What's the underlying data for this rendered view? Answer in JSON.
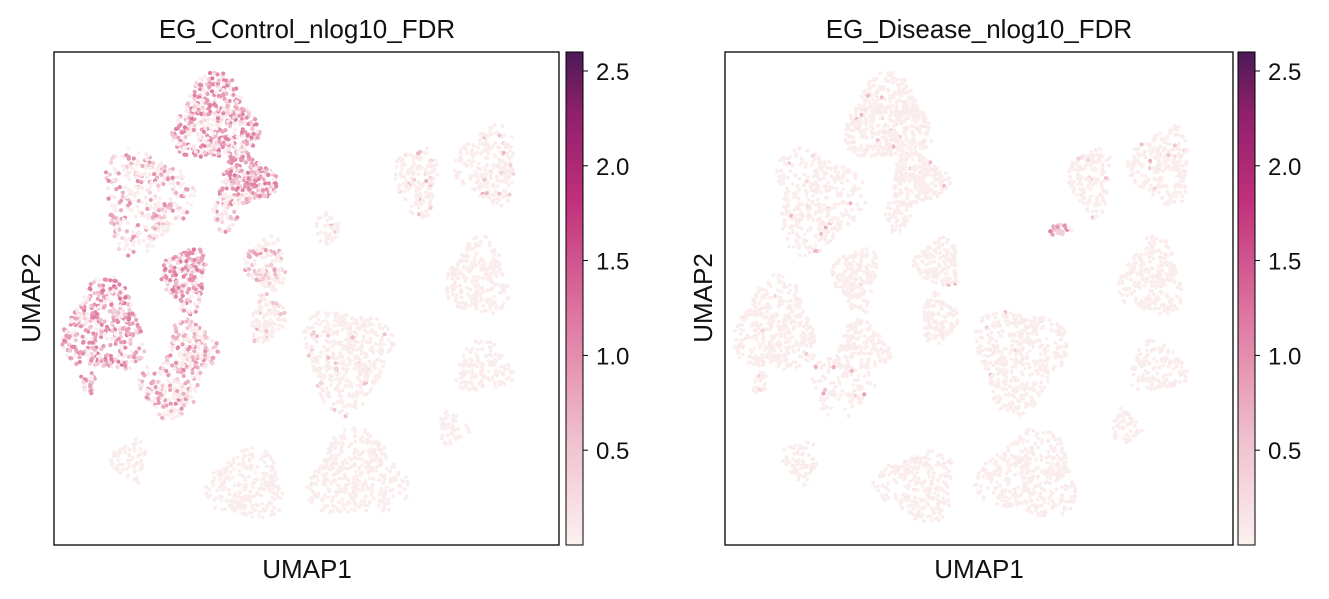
{
  "chart_data": [
    {
      "type": "scatter",
      "title": "EG_Control_nlog10_FDR",
      "xlabel": "UMAP1",
      "ylabel": "UMAP2",
      "grid": false,
      "colorbar": {
        "vmin": 0.0,
        "vmax": 2.6,
        "ticks": [
          "0.5",
          "1.0",
          "1.5",
          "2.0",
          "2.5"
        ],
        "tick_values": [
          0.5,
          1.0,
          1.5,
          2.0,
          2.5
        ]
      },
      "colormap": [
        "#fcf1f0",
        "#f0c4cf",
        "#e07aa3",
        "#c0307a",
        "#8e1f6c",
        "#4b1a55"
      ],
      "clusters": [
        {
          "x": 0.32,
          "y": 0.14,
          "rx": 0.095,
          "ry": 0.1,
          "n": 520,
          "base": 0.35,
          "hot": 0.35,
          "hot_value": 0.9
        },
        {
          "x": 0.38,
          "y": 0.26,
          "rx": 0.065,
          "ry": 0.06,
          "n": 240,
          "base": 0.35,
          "hot": 0.45,
          "hot_value": 0.9
        },
        {
          "x": 0.18,
          "y": 0.3,
          "rx": 0.1,
          "ry": 0.12,
          "n": 360,
          "base": 0.3,
          "hot": 0.25,
          "hot_value": 0.8
        },
        {
          "x": 0.34,
          "y": 0.33,
          "rx": 0.03,
          "ry": 0.04,
          "n": 50,
          "base": 0.3,
          "hot": 0.25,
          "hot_value": 0.8
        },
        {
          "x": 0.26,
          "y": 0.46,
          "rx": 0.05,
          "ry": 0.075,
          "n": 200,
          "base": 0.35,
          "hot": 0.45,
          "hot_value": 0.9
        },
        {
          "x": 0.42,
          "y": 0.43,
          "rx": 0.05,
          "ry": 0.06,
          "n": 140,
          "base": 0.3,
          "hot": 0.15,
          "hot_value": 0.7
        },
        {
          "x": 0.1,
          "y": 0.56,
          "rx": 0.09,
          "ry": 0.11,
          "n": 400,
          "base": 0.4,
          "hot": 0.45,
          "hot_value": 0.9
        },
        {
          "x": 0.27,
          "y": 0.6,
          "rx": 0.06,
          "ry": 0.06,
          "n": 180,
          "base": 0.35,
          "hot": 0.3,
          "hot_value": 0.8
        },
        {
          "x": 0.42,
          "y": 0.54,
          "rx": 0.04,
          "ry": 0.06,
          "n": 120,
          "base": 0.1,
          "hot": 0.05,
          "hot_value": 0.6
        },
        {
          "x": 0.58,
          "y": 0.62,
          "rx": 0.1,
          "ry": 0.12,
          "n": 450,
          "base": 0.05,
          "hot": 0.02,
          "hot_value": 0.6
        },
        {
          "x": 0.72,
          "y": 0.26,
          "rx": 0.05,
          "ry": 0.08,
          "n": 160,
          "base": 0.05,
          "hot": 0.05,
          "hot_value": 0.6
        },
        {
          "x": 0.86,
          "y": 0.23,
          "rx": 0.07,
          "ry": 0.09,
          "n": 230,
          "base": 0.05,
          "hot": 0.02,
          "hot_value": 0.6
        },
        {
          "x": 0.84,
          "y": 0.46,
          "rx": 0.07,
          "ry": 0.09,
          "n": 260,
          "base": 0.0,
          "hot": 0.0,
          "hot_value": 0.5
        },
        {
          "x": 0.85,
          "y": 0.64,
          "rx": 0.065,
          "ry": 0.06,
          "n": 140,
          "base": 0.0,
          "hot": 0.0,
          "hot_value": 0.5
        },
        {
          "x": 0.79,
          "y": 0.76,
          "rx": 0.035,
          "ry": 0.04,
          "n": 50,
          "base": 0.0,
          "hot": 0.0,
          "hot_value": 0.5
        },
        {
          "x": 0.24,
          "y": 0.7,
          "rx": 0.045,
          "ry": 0.045,
          "n": 80,
          "base": 0.05,
          "hot": 0.02,
          "hot_value": 0.6
        },
        {
          "x": 0.23,
          "y": 0.68,
          "rx": 0.07,
          "ry": 0.07,
          "n": 120,
          "base": 0.3,
          "hot": 0.3,
          "hot_value": 0.8
        },
        {
          "x": 0.15,
          "y": 0.83,
          "rx": 0.04,
          "ry": 0.05,
          "n": 70,
          "base": 0.0,
          "hot": 0.0,
          "hot_value": 0.5
        },
        {
          "x": 0.38,
          "y": 0.88,
          "rx": 0.09,
          "ry": 0.08,
          "n": 260,
          "base": 0.0,
          "hot": 0.0,
          "hot_value": 0.5
        },
        {
          "x": 0.6,
          "y": 0.86,
          "rx": 0.11,
          "ry": 0.1,
          "n": 400,
          "base": 0.0,
          "hot": 0.0,
          "hot_value": 0.5
        },
        {
          "x": 0.54,
          "y": 0.36,
          "rx": 0.03,
          "ry": 0.04,
          "n": 40,
          "base": 0.05,
          "hot": 0.0,
          "hot_value": 0.5
        },
        {
          "x": 0.07,
          "y": 0.67,
          "rx": 0.02,
          "ry": 0.03,
          "n": 25,
          "base": 0.4,
          "hot": 0.3,
          "hot_value": 0.8
        }
      ]
    },
    {
      "type": "scatter",
      "title": "EG_Disease_nlog10_FDR",
      "xlabel": "UMAP1",
      "ylabel": "UMAP2",
      "grid": false,
      "colorbar": {
        "vmin": 0.0,
        "vmax": 2.6,
        "ticks": [
          "0.5",
          "1.0",
          "1.5",
          "2.0",
          "2.5"
        ],
        "tick_values": [
          0.5,
          1.0,
          1.5,
          2.0,
          2.5
        ]
      },
      "colormap": [
        "#fcf1f0",
        "#f0c4cf",
        "#e07aa3",
        "#c0307a",
        "#8e1f6c",
        "#4b1a55"
      ],
      "clusters": [
        {
          "x": 0.32,
          "y": 0.14,
          "rx": 0.095,
          "ry": 0.1,
          "n": 520,
          "base": 0.02,
          "hot": 0.01,
          "hot_value": 0.6
        },
        {
          "x": 0.38,
          "y": 0.26,
          "rx": 0.065,
          "ry": 0.06,
          "n": 240,
          "base": 0.02,
          "hot": 0.01,
          "hot_value": 0.6
        },
        {
          "x": 0.18,
          "y": 0.3,
          "rx": 0.1,
          "ry": 0.12,
          "n": 360,
          "base": 0.02,
          "hot": 0.01,
          "hot_value": 0.6
        },
        {
          "x": 0.34,
          "y": 0.33,
          "rx": 0.03,
          "ry": 0.04,
          "n": 50,
          "base": 0.0,
          "hot": 0.0,
          "hot_value": 0.5
        },
        {
          "x": 0.26,
          "y": 0.46,
          "rx": 0.05,
          "ry": 0.075,
          "n": 200,
          "base": 0.02,
          "hot": 0.01,
          "hot_value": 0.6
        },
        {
          "x": 0.42,
          "y": 0.43,
          "rx": 0.05,
          "ry": 0.06,
          "n": 140,
          "base": 0.02,
          "hot": 0.01,
          "hot_value": 0.6
        },
        {
          "x": 0.1,
          "y": 0.56,
          "rx": 0.09,
          "ry": 0.11,
          "n": 400,
          "base": 0.02,
          "hot": 0.01,
          "hot_value": 0.6
        },
        {
          "x": 0.27,
          "y": 0.6,
          "rx": 0.06,
          "ry": 0.06,
          "n": 180,
          "base": 0.0,
          "hot": 0.0,
          "hot_value": 0.5
        },
        {
          "x": 0.42,
          "y": 0.54,
          "rx": 0.04,
          "ry": 0.06,
          "n": 120,
          "base": 0.0,
          "hot": 0.0,
          "hot_value": 0.5
        },
        {
          "x": 0.58,
          "y": 0.62,
          "rx": 0.1,
          "ry": 0.12,
          "n": 450,
          "base": 0.02,
          "hot": 0.0,
          "hot_value": 0.5
        },
        {
          "x": 0.72,
          "y": 0.26,
          "rx": 0.05,
          "ry": 0.08,
          "n": 160,
          "base": 0.05,
          "hot": 0.02,
          "hot_value": 0.6
        },
        {
          "x": 0.86,
          "y": 0.23,
          "rx": 0.07,
          "ry": 0.09,
          "n": 230,
          "base": 0.03,
          "hot": 0.02,
          "hot_value": 0.6
        },
        {
          "x": 0.84,
          "y": 0.46,
          "rx": 0.07,
          "ry": 0.09,
          "n": 260,
          "base": 0.0,
          "hot": 0.0,
          "hot_value": 0.5
        },
        {
          "x": 0.85,
          "y": 0.64,
          "rx": 0.065,
          "ry": 0.06,
          "n": 140,
          "base": 0.0,
          "hot": 0.0,
          "hot_value": 0.5
        },
        {
          "x": 0.79,
          "y": 0.76,
          "rx": 0.035,
          "ry": 0.04,
          "n": 50,
          "base": 0.0,
          "hot": 0.0,
          "hot_value": 0.5
        },
        {
          "x": 0.23,
          "y": 0.68,
          "rx": 0.07,
          "ry": 0.07,
          "n": 120,
          "base": 0.05,
          "hot": 0.03,
          "hot_value": 0.7
        },
        {
          "x": 0.15,
          "y": 0.83,
          "rx": 0.04,
          "ry": 0.05,
          "n": 70,
          "base": 0.0,
          "hot": 0.0,
          "hot_value": 0.5
        },
        {
          "x": 0.38,
          "y": 0.88,
          "rx": 0.09,
          "ry": 0.08,
          "n": 260,
          "base": 0.0,
          "hot": 0.0,
          "hot_value": 0.5
        },
        {
          "x": 0.6,
          "y": 0.86,
          "rx": 0.11,
          "ry": 0.1,
          "n": 400,
          "base": 0.0,
          "hot": 0.0,
          "hot_value": 0.5
        },
        {
          "x": 0.66,
          "y": 0.36,
          "rx": 0.025,
          "ry": 0.015,
          "n": 25,
          "base": 0.6,
          "hot": 0.4,
          "hot_value": 0.9
        },
        {
          "x": 0.07,
          "y": 0.67,
          "rx": 0.02,
          "ry": 0.03,
          "n": 25,
          "base": 0.05,
          "hot": 0.0,
          "hot_value": 0.5
        }
      ]
    }
  ]
}
